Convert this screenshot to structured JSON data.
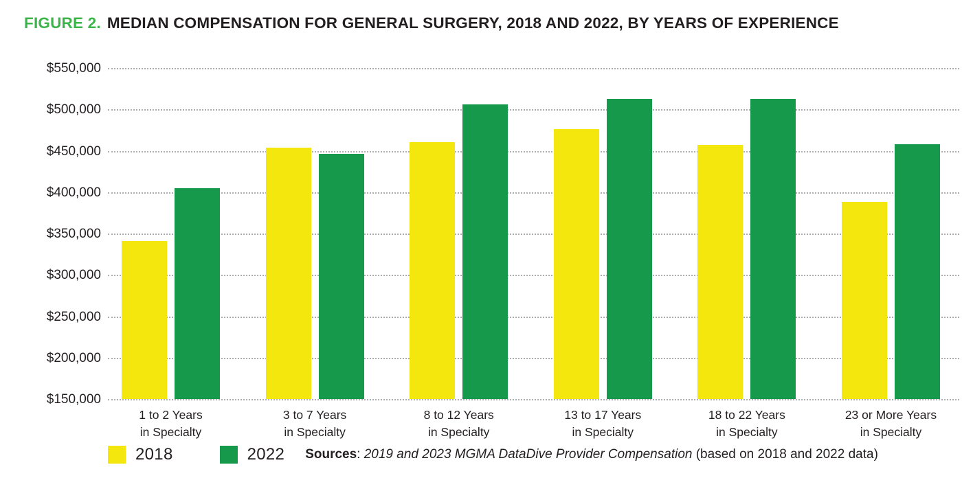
{
  "title": {
    "label": "FIGURE 2.",
    "text": "MEDIAN COMPENSATION FOR GENERAL SURGERY, 2018 AND 2022, BY YEARS OF EXPERIENCE"
  },
  "colors": {
    "accent_green": "#3BB54A",
    "bar_2018_yellow": "#F3E70E",
    "bar_2022_green": "#17994C",
    "text_dark": "#231F20",
    "gridline_gray": "#ABADB0"
  },
  "legend": [
    {
      "label": "2018",
      "color": "#F3E70E"
    },
    {
      "label": "2022",
      "color": "#17994C"
    }
  ],
  "sources": {
    "label": "Sources",
    "separator": ": ",
    "italic_text": "2019 and 2023 MGMA DataDive Provider Compensation",
    "plain_text": " (based on 2018 and 2022 data)"
  },
  "chart_data": {
    "type": "bar",
    "title": "FIGURE 2. MEDIAN COMPENSATION FOR GENERAL SURGERY, 2018 AND 2022, BY YEARS OF EXPERIENCE",
    "categories": [
      "1 to 2 Years in Specialty",
      "3 to 7 Years in Specialty",
      "8 to 12 Years in Specialty",
      "13 to 17 Years in Specialty",
      "18 to 22 Years in Specialty",
      "23 or More Years in Specialty"
    ],
    "category_lines": [
      [
        "1 to 2 Years",
        "in Specialty"
      ],
      [
        "3 to 7 Years",
        "in Specialty"
      ],
      [
        "8 to 12 Years",
        "in Specialty"
      ],
      [
        "13 to 17 Years",
        "in Specialty"
      ],
      [
        "18 to 22 Years",
        "in Specialty"
      ],
      [
        "23 or More Years",
        "in Specialty"
      ]
    ],
    "series": [
      {
        "name": "2018",
        "color": "#F3E70E",
        "values": [
          341000,
          454000,
          460000,
          476000,
          457000,
          388000
        ]
      },
      {
        "name": "2022",
        "color": "#17994C",
        "values": [
          405000,
          446000,
          506000,
          513000,
          513000,
          458000
        ]
      }
    ],
    "xlabel": "",
    "ylabel": "",
    "ylim": [
      150000,
      550000
    ],
    "ytick_step": 50000,
    "ytick_labels": [
      "$150,000",
      "$200,000",
      "$250,000",
      "$300,000",
      "$350,000",
      "$400,000",
      "$450,000",
      "$500,000",
      "$550,000"
    ],
    "grid": "horizontal-dotted",
    "legend_position": "bottom-left"
  }
}
